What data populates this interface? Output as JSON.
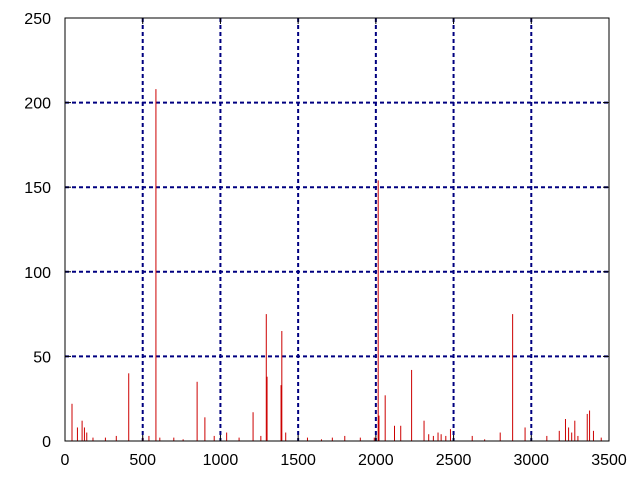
{
  "chart_data": {
    "type": "bar",
    "title": "",
    "xlabel": "",
    "ylabel": "",
    "xlim": [
      0,
      3500
    ],
    "ylim": [
      0,
      250
    ],
    "xticks": [
      0,
      500,
      1000,
      1500,
      2000,
      2500,
      3000,
      3500
    ],
    "yticks": [
      0,
      50,
      100,
      150,
      200,
      250
    ],
    "grid": true,
    "legend": "none",
    "series": [
      {
        "color": "#cc0000",
        "x": [
          45,
          80,
          110,
          125,
          140,
          180,
          260,
          330,
          410,
          500,
          540,
          585,
          610,
          700,
          760,
          850,
          900,
          960,
          1040,
          1120,
          1210,
          1260,
          1295,
          1300,
          1390,
          1395,
          1420,
          1560,
          1650,
          1720,
          1800,
          1900,
          1990,
          2015,
          2020,
          2060,
          2120,
          2160,
          2230,
          2310,
          2340,
          2370,
          2400,
          2420,
          2450,
          2480,
          2620,
          2700,
          2800,
          2880,
          2960,
          3100,
          3180,
          3220,
          3240,
          3260,
          3280,
          3300,
          3360,
          3375,
          3400,
          3450
        ],
        "values": [
          22,
          8,
          12,
          8,
          5,
          2,
          2,
          3,
          40,
          2,
          3,
          208,
          2,
          2,
          1,
          35,
          14,
          3,
          5,
          2,
          17,
          3,
          75,
          38,
          33,
          65,
          5,
          2,
          1,
          2,
          3,
          2,
          2,
          154,
          15,
          27,
          9,
          9,
          42,
          12,
          4,
          3,
          5,
          4,
          3,
          7,
          3,
          1,
          5,
          75,
          8,
          3,
          6,
          13,
          8,
          5,
          12,
          3,
          16,
          18,
          6,
          2
        ]
      }
    ]
  }
}
